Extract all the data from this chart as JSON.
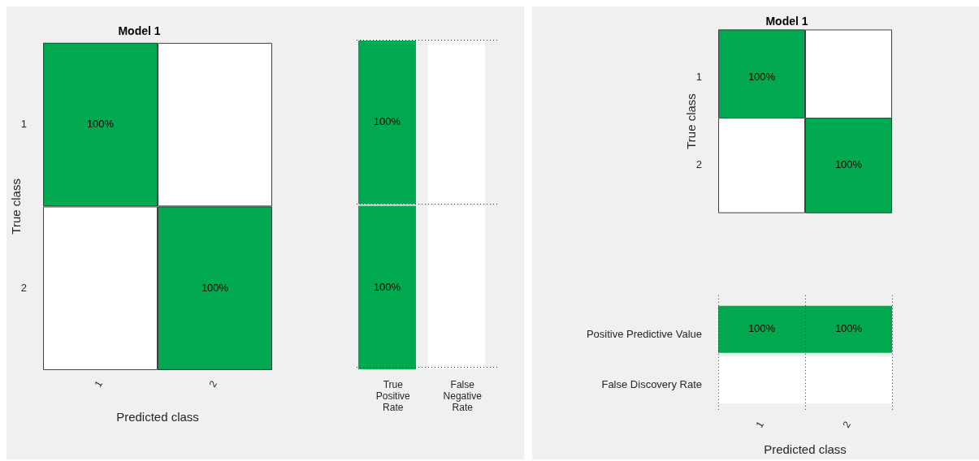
{
  "chart_data": [
    {
      "type": "heatmap",
      "title": "Model 1",
      "xlabel": "Predicted class",
      "ylabel": "True class",
      "categories": [
        "1",
        "2"
      ],
      "y_categories": [
        "1",
        "2"
      ],
      "cells": [
        [
          100,
          null
        ],
        [
          null,
          100
        ]
      ],
      "cell_labels": [
        [
          "100%",
          null
        ],
        [
          null,
          "100%"
        ]
      ],
      "data_labels": true
    },
    {
      "type": "heatmap",
      "categories": [
        "True Positive Rate",
        "False Negative Rate"
      ],
      "y_categories": [
        "1",
        "2"
      ],
      "tick_labels": "x",
      "cells": [
        [
          100,
          null
        ],
        [
          100,
          null
        ]
      ],
      "cell_labels": [
        [
          "100%",
          null
        ],
        [
          "100%",
          null
        ]
      ],
      "data_labels": true,
      "grid": true
    },
    {
      "type": "heatmap",
      "title": "Model 1",
      "ylabel": "True class",
      "categories": [
        "1",
        "2"
      ],
      "y_categories": [
        "1",
        "2"
      ],
      "tick_labels": "y",
      "cells": [
        [
          100,
          null
        ],
        [
          null,
          100
        ]
      ],
      "cell_labels": [
        [
          "100%",
          null
        ],
        [
          null,
          "100%"
        ]
      ],
      "data_labels": true
    },
    {
      "type": "heatmap",
      "xlabel": "Predicted class",
      "categories": [
        "1",
        "2"
      ],
      "y_categories": [
        "Positive Predictive Value",
        "False Discovery Rate"
      ],
      "cells": [
        [
          100,
          100
        ],
        [
          null,
          null
        ]
      ],
      "cell_labels": [
        [
          "100%",
          "100%"
        ],
        [
          null,
          null
        ]
      ],
      "data_labels": true,
      "grid": true
    }
  ]
}
